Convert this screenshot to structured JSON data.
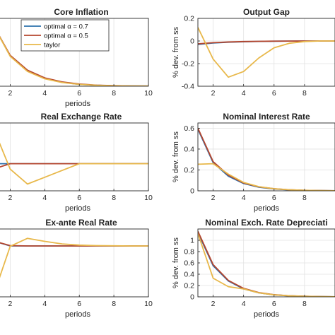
{
  "colors": {
    "optimal_07": "#2e72ad",
    "optimal_05": "#b5462e",
    "taylor": "#e8b84a",
    "grid": "#e2e2e2",
    "axis": "#262626"
  },
  "chart_data": [
    {
      "type": "line",
      "title": "Core Inflation",
      "xlabel": "periods",
      "ylabel": "",
      "xlim": [
        1,
        10
      ],
      "xticks": [
        2,
        4,
        6,
        8,
        10
      ],
      "ylim": [
        0,
        0.22
      ],
      "yticks": [],
      "ytick_labels": [],
      "grid": true,
      "legend": {
        "placement": "top-right",
        "entries": [
          "optimal α = 0.7",
          "optimal α = 0.5",
          "taylor"
        ]
      },
      "x": [
        1,
        2,
        3,
        4,
        5,
        6,
        7,
        8,
        9,
        10
      ],
      "series": [
        {
          "name": "optimal α = 0.7",
          "color_key": "optimal_07",
          "values": [
            0.2,
            0.098,
            0.05,
            0.025,
            0.013,
            0.006,
            0.003,
            0.0015,
            0.0008,
            0.0004
          ]
        },
        {
          "name": "optimal α = 0.5",
          "color_key": "optimal_05",
          "values": [
            0.2,
            0.1,
            0.052,
            0.027,
            0.014,
            0.007,
            0.0035,
            0.0018,
            0.0009,
            0.0005
          ]
        },
        {
          "name": "taylor",
          "color_key": "taylor",
          "values": [
            0.2,
            0.097,
            0.048,
            0.024,
            0.012,
            0.006,
            0.003,
            0.0015,
            0.0008,
            0.0004
          ]
        }
      ]
    },
    {
      "type": "line",
      "title": "Output Gap",
      "xlabel": "",
      "ylabel": "% dev. from ss",
      "xlim": [
        1,
        10
      ],
      "xticks": [
        2,
        4,
        6,
        8
      ],
      "ylim": [
        -0.4,
        0.2
      ],
      "yticks": [
        -0.4,
        -0.2,
        0,
        0.2
      ],
      "ytick_labels": [
        "-0.4",
        "-0.2",
        "0",
        "0.2"
      ],
      "grid": true,
      "x": [
        1,
        2,
        3,
        4,
        5,
        6,
        7,
        8,
        9,
        10
      ],
      "series": [
        {
          "name": "optimal α = 0.7",
          "color_key": "optimal_07",
          "values": [
            -0.03,
            -0.018,
            -0.011,
            -0.007,
            -0.004,
            -0.002,
            -0.001,
            -0.0005,
            -0.0003,
            -0.0001
          ]
        },
        {
          "name": "optimal α = 0.5",
          "color_key": "optimal_05",
          "values": [
            -0.025,
            -0.015,
            -0.009,
            -0.005,
            -0.003,
            -0.0015,
            -0.0008,
            -0.0004,
            -0.0002,
            -0.0001
          ]
        },
        {
          "name": "taylor",
          "color_key": "taylor",
          "values": [
            0.12,
            -0.16,
            -0.32,
            -0.27,
            -0.15,
            -0.06,
            -0.02,
            -0.005,
            0,
            0
          ]
        }
      ]
    },
    {
      "type": "line",
      "title": "Real Exchange Rate",
      "xlabel": "periods",
      "ylabel": "",
      "xlim": [
        1,
        10
      ],
      "xticks": [
        2,
        4,
        6,
        8,
        10
      ],
      "ylim": [
        -0.2,
        0.3
      ],
      "yticks": [],
      "ytick_labels": [],
      "grid": true,
      "x": [
        1,
        2,
        3,
        4,
        5,
        6,
        7,
        8,
        9,
        10
      ],
      "series": [
        {
          "name": "optimal α = 0.7",
          "color_key": "optimal_07",
          "values": [
            0,
            0,
            0,
            0,
            0,
            0,
            0,
            0,
            0,
            0
          ]
        },
        {
          "name": "optimal α = 0.5",
          "color_key": "optimal_05",
          "values": [
            -0.04,
            0,
            0,
            0,
            0,
            0,
            0,
            0,
            0,
            0
          ]
        },
        {
          "name": "taylor",
          "color_key": "taylor",
          "values": [
            0.27,
            -0.04,
            -0.15,
            -0.1,
            -0.05,
            0,
            0,
            0,
            0,
            0
          ]
        }
      ]
    },
    {
      "type": "line",
      "title": "Nominal Interest Rate",
      "xlabel": "periods",
      "ylabel": "% dev. from ss",
      "xlim": [
        1,
        10
      ],
      "xticks": [
        2,
        4,
        6,
        8
      ],
      "ylim": [
        0,
        0.65
      ],
      "yticks": [
        0,
        0.2,
        0.4,
        0.6
      ],
      "ytick_labels": [
        "0",
        "0.2",
        "0.4",
        "0.6"
      ],
      "grid": true,
      "x": [
        1,
        2,
        3,
        4,
        5,
        6,
        7,
        8,
        9,
        10
      ],
      "series": [
        {
          "name": "optimal α = 0.7",
          "color_key": "optimal_07",
          "values": [
            0.59,
            0.27,
            0.14,
            0.07,
            0.035,
            0.018,
            0.009,
            0.0045,
            0.002,
            0.001
          ]
        },
        {
          "name": "optimal α = 0.5",
          "color_key": "optimal_05",
          "values": [
            0.6,
            0.28,
            0.15,
            0.075,
            0.038,
            0.02,
            0.01,
            0.005,
            0.0025,
            0.001
          ]
        },
        {
          "name": "taylor",
          "color_key": "taylor",
          "values": [
            0.255,
            0.26,
            0.16,
            0.08,
            0.04,
            0.02,
            0.01,
            0.005,
            0.002,
            0.001
          ]
        }
      ]
    },
    {
      "type": "line",
      "title": "Ex-ante Real Rate",
      "xlabel": "periods",
      "ylabel": "",
      "xlim": [
        1,
        10
      ],
      "xticks": [
        2,
        4,
        6,
        8,
        10
      ],
      "ylim": [
        -0.3,
        0.1
      ],
      "yticks": [],
      "ytick_labels": [],
      "grid": true,
      "x": [
        1,
        2,
        3,
        4,
        5,
        6,
        7,
        8,
        9,
        10
      ],
      "series": [
        {
          "name": "optimal α = 0.7",
          "color_key": "optimal_07",
          "values": [
            0.03,
            0,
            0,
            0,
            0,
            0,
            0,
            0,
            0,
            0
          ]
        },
        {
          "name": "optimal α = 0.5",
          "color_key": "optimal_05",
          "values": [
            0.03,
            0.002,
            0,
            0,
            0,
            0,
            0,
            0,
            0,
            0
          ]
        },
        {
          "name": "taylor",
          "color_key": "taylor",
          "values": [
            -0.3,
            -0.002,
            0.045,
            0.027,
            0.012,
            0.005,
            0.002,
            0.001,
            0,
            0
          ]
        }
      ]
    },
    {
      "type": "line",
      "title": "Nominal Exch. Rate Depreciati",
      "xlabel": "periods",
      "ylabel": "% dev. from ss",
      "xlim": [
        1,
        10
      ],
      "xticks": [
        2,
        4,
        6,
        8
      ],
      "ylim": [
        0,
        1.2
      ],
      "yticks": [
        0,
        0.2,
        0.4,
        0.6,
        0.8,
        1
      ],
      "ytick_labels": [
        "0",
        "0.2",
        "0.4",
        "0.6",
        "0.8",
        "1"
      ],
      "grid": true,
      "x": [
        1,
        2,
        3,
        4,
        5,
        6,
        7,
        8,
        9,
        10
      ],
      "series": [
        {
          "name": "optimal α = 0.7",
          "color_key": "optimal_07",
          "values": [
            1.14,
            0.55,
            0.28,
            0.14,
            0.07,
            0.035,
            0.018,
            0.009,
            0.004,
            0.002
          ]
        },
        {
          "name": "optimal α = 0.5",
          "color_key": "optimal_05",
          "values": [
            1.16,
            0.57,
            0.29,
            0.15,
            0.075,
            0.038,
            0.019,
            0.01,
            0.005,
            0.002
          ]
        },
        {
          "name": "taylor",
          "color_key": "taylor",
          "values": [
            1.12,
            0.33,
            0.18,
            0.14,
            0.07,
            0.035,
            0.018,
            0.009,
            0.004,
            0.002
          ]
        }
      ]
    }
  ]
}
